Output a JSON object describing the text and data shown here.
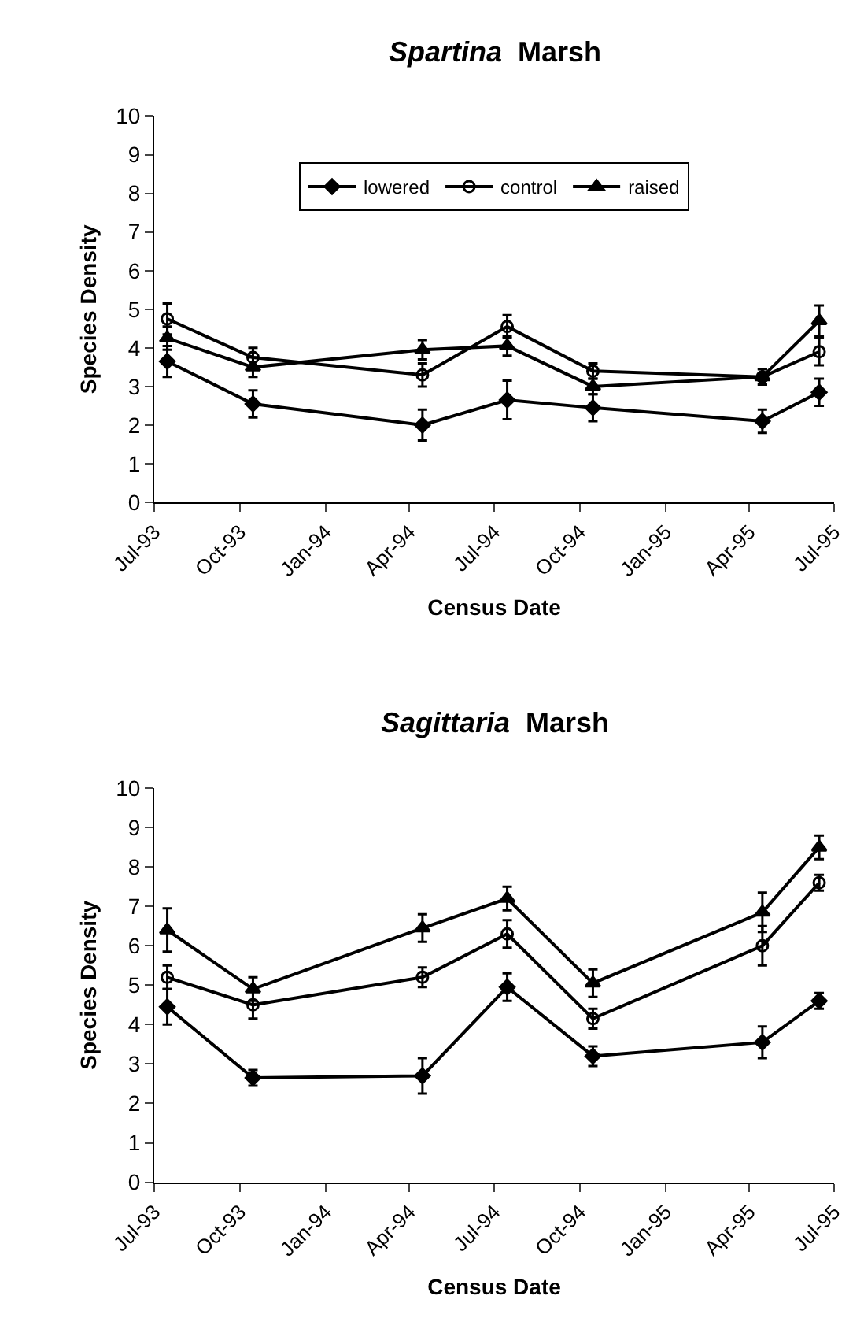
{
  "chart_data": [
    {
      "type": "line",
      "title": "Spartina Marsh",
      "xlabel": "Census Date",
      "ylabel": "Species Density",
      "x": [
        "1993-07-15",
        "1993-10-15",
        "1994-04-15",
        "1994-07-15",
        "1994-10-15",
        "1995-04-15",
        "1995-06-15"
      ],
      "series": [
        {
          "name": "lowered",
          "color": "#000000",
          "marker": "diamond",
          "values": [
            3.65,
            2.55,
            2.0,
            2.65,
            2.45,
            2.1,
            2.85
          ],
          "errors": [
            0.4,
            0.35,
            0.4,
            0.5,
            0.35,
            0.3,
            0.35
          ]
        },
        {
          "name": "control",
          "color": "#000000",
          "marker": "circle",
          "values": [
            4.75,
            3.75,
            3.3,
            4.55,
            3.4,
            3.25,
            3.9
          ],
          "errors": [
            0.4,
            0.25,
            0.3,
            0.3,
            0.2,
            0.2,
            0.35
          ]
        },
        {
          "name": "raised",
          "color": "#000000",
          "marker": "triangle",
          "values": [
            4.25,
            3.5,
            3.95,
            4.05,
            3.0,
            3.25,
            4.7
          ],
          "errors": [
            0.3,
            0.25,
            0.25,
            0.25,
            0.2,
            0.2,
            0.4
          ]
        }
      ],
      "xlim": [
        "1993-07-01",
        "1995-07-01"
      ],
      "xticks": [
        {
          "value": "1993-07-01",
          "label": "Jul-93"
        },
        {
          "value": "1993-10-01",
          "label": "Oct-93"
        },
        {
          "value": "1994-01-01",
          "label": "Jan-94"
        },
        {
          "value": "1994-04-01",
          "label": "Apr-94"
        },
        {
          "value": "1994-07-01",
          "label": "Jul-94"
        },
        {
          "value": "1994-10-01",
          "label": "Oct-94"
        },
        {
          "value": "1995-01-01",
          "label": "Jan-95"
        },
        {
          "value": "1995-04-01",
          "label": "Apr-95"
        },
        {
          "value": "1995-07-01",
          "label": "Jul-95"
        }
      ],
      "ylim": [
        0,
        10
      ],
      "yticks": [
        0,
        1,
        2,
        3,
        4,
        5,
        6,
        7,
        8,
        9,
        10
      ],
      "legend": "top",
      "line_style": "solid"
    },
    {
      "type": "line",
      "title": "Sagittaria Marsh",
      "xlabel": "Census Date",
      "ylabel": "Species Density",
      "x": [
        "1993-07-15",
        "1993-10-15",
        "1994-04-15",
        "1994-07-15",
        "1994-10-15",
        "1995-04-15",
        "1995-06-15"
      ],
      "series": [
        {
          "color": "#000000",
          "marker": "diamond",
          "values": [
            4.45,
            2.65,
            2.7,
            4.95,
            3.2,
            3.55,
            4.6
          ],
          "errors": [
            0.45,
            0.2,
            0.45,
            0.35,
            0.25,
            0.4,
            0.2
          ]
        },
        {
          "color": "#000000",
          "marker": "circle",
          "values": [
            5.2,
            4.5,
            5.2,
            6.3,
            4.15,
            6.0,
            7.6
          ],
          "errors": [
            0.3,
            0.35,
            0.25,
            0.35,
            0.25,
            0.5,
            0.2
          ]
        },
        {
          "color": "#000000",
          "marker": "triangle",
          "values": [
            6.4,
            4.9,
            6.45,
            7.2,
            5.05,
            6.85,
            8.5
          ],
          "errors": [
            0.55,
            0.3,
            0.35,
            0.3,
            0.35,
            0.5,
            0.3
          ]
        }
      ],
      "xlim": [
        "1993-07-01",
        "1995-07-01"
      ],
      "xticks": [
        {
          "value": "1993-07-01",
          "label": "Jul-93"
        },
        {
          "value": "1993-10-01",
          "label": "Oct-93"
        },
        {
          "value": "1994-01-01",
          "label": "Jan-94"
        },
        {
          "value": "1994-04-01",
          "label": "Apr-94"
        },
        {
          "value": "1994-07-01",
          "label": "Jul-94"
        },
        {
          "value": "1994-10-01",
          "label": "Oct-94"
        },
        {
          "value": "1995-01-01",
          "label": "Jan-95"
        },
        {
          "value": "1995-04-01",
          "label": "Apr-95"
        },
        {
          "value": "1995-07-01",
          "label": "Jul-95"
        }
      ],
      "ylim": [
        0,
        10
      ],
      "yticks": [
        0,
        1,
        2,
        3,
        4,
        5,
        6,
        7,
        8,
        9,
        10
      ],
      "line_style": "solid"
    }
  ]
}
